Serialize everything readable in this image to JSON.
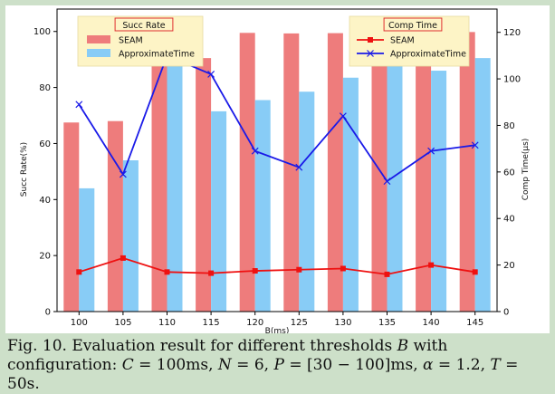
{
  "chart_data": {
    "type": "bar",
    "xlabel": "B(ms)",
    "ylabel": "Succ Rate(%)",
    "ylabel_right": "Comp Time(µs)",
    "categories": [
      "100",
      "105",
      "110",
      "115",
      "120",
      "125",
      "130",
      "135",
      "140",
      "145"
    ],
    "ylim": [
      0,
      108
    ],
    "ylim_right": [
      0,
      130
    ],
    "yticks": [
      0,
      20,
      40,
      60,
      80,
      100
    ],
    "yticks_right": [
      0,
      20,
      40,
      60,
      80,
      100,
      120
    ],
    "grid": false,
    "bar_series": [
      {
        "name": "SEAM",
        "color": "#ee7c7c",
        "values": [
          67.5,
          68,
          99.5,
          90.5,
          99.5,
          99.3,
          99.4,
          99.2,
          99.5,
          99.8
        ]
      },
      {
        "name": "ApproximateTime",
        "color": "#88ccf6",
        "values": [
          44,
          54,
          99.5,
          71.5,
          75.5,
          78.5,
          83.5,
          89.5,
          86,
          90.5
        ]
      }
    ],
    "line_series": [
      {
        "name": "SEAM",
        "color": "#ee1111",
        "marker": "square",
        "values": [
          17,
          23,
          17,
          16.5,
          17.5,
          18,
          18.5,
          16,
          20,
          17
        ]
      },
      {
        "name": "ApproximateTime",
        "color": "#1a1ae8",
        "marker": "x",
        "values": [
          89,
          59,
          110,
          102,
          69,
          62,
          84,
          56,
          69,
          71.5
        ]
      }
    ],
    "legend_left": {
      "title": "Succ Rate",
      "placement": "top-left",
      "entries": [
        "SEAM",
        "ApproximateTime"
      ]
    },
    "legend_right": {
      "title": "Comp Time",
      "placement": "top-right",
      "entries": [
        "SEAM",
        "ApproximateTime"
      ]
    }
  },
  "caption": {
    "prefix": "Fig. 10.  Evaluation result for different thresholds ",
    "var_b": "B",
    "middle": " with configuration: ",
    "eq_c": "C",
    "eq_c_rest": " = 100ms, ",
    "eq_n": "N",
    "eq_n_rest": " = 6, ",
    "eq_p": "P",
    "eq_p_rest": " = [30 − 100]ms, ",
    "eq_alpha": "α",
    "eq_alpha_rest": " = 1.2, ",
    "eq_t": "T",
    "eq_t_rest": " = 50s."
  }
}
